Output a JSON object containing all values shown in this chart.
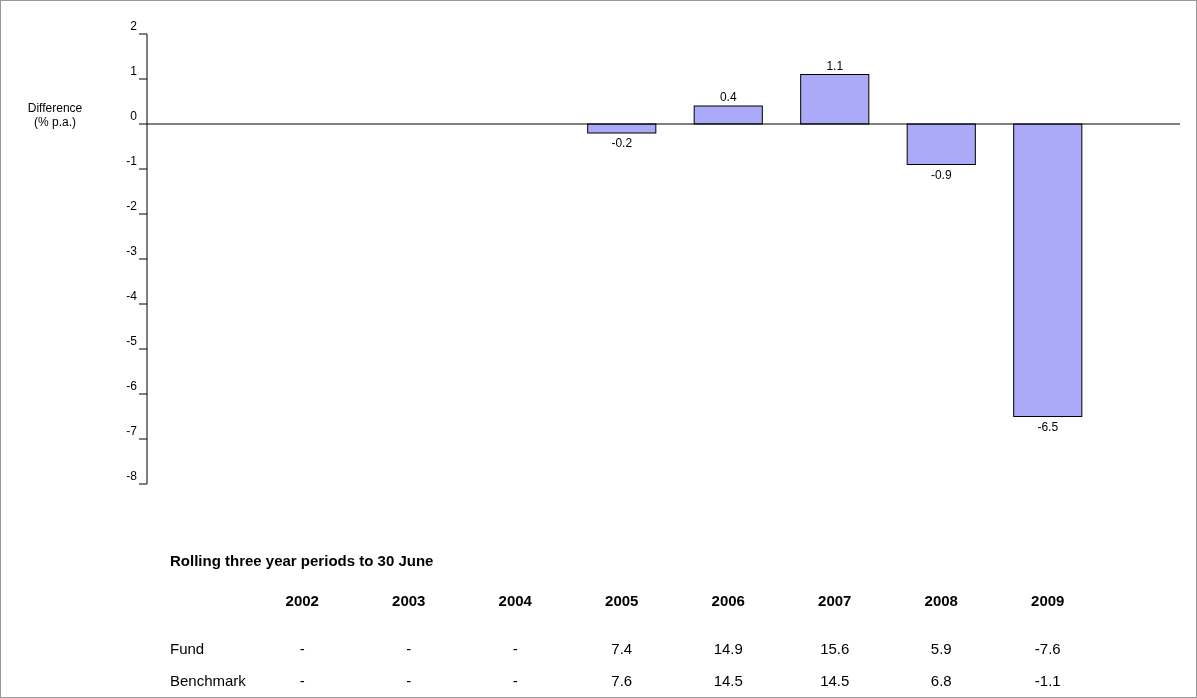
{
  "chart_data": {
    "type": "bar",
    "xlabel": "Rolling three year periods to 30 June",
    "ylabel": "Difference (% p.a.)",
    "categories": [
      "2002",
      "2003",
      "2004",
      "2005",
      "2006",
      "2007",
      "2008",
      "2009"
    ],
    "values": [
      null,
      null,
      null,
      -0.2,
      0.4,
      1.1,
      -0.9,
      -6.5
    ],
    "color": "#aaaaf8",
    "ylim": [
      -8,
      2
    ],
    "yticks": [
      2,
      1,
      0,
      -1,
      -2,
      -3,
      -4,
      -5,
      -6,
      -7,
      -8
    ],
    "data_labels": true,
    "annotations": [
      "Fund",
      "-",
      "-",
      "-",
      "7.4",
      "14.9",
      "15.6",
      "5.9",
      "-7.6",
      "Benchmark",
      "-",
      "-",
      "-",
      "7.6",
      "14.5",
      "14.5",
      "6.8",
      "-1.1"
    ]
  }
}
